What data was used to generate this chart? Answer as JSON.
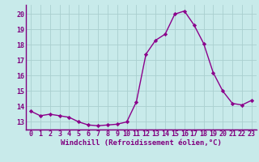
{
  "x": [
    0,
    1,
    2,
    3,
    4,
    5,
    6,
    7,
    8,
    9,
    10,
    11,
    12,
    13,
    14,
    15,
    16,
    17,
    18,
    19,
    20,
    21,
    22,
    23
  ],
  "y": [
    13.7,
    13.4,
    13.5,
    13.4,
    13.3,
    13.0,
    12.8,
    12.75,
    12.8,
    12.85,
    13.0,
    14.3,
    17.4,
    18.3,
    18.7,
    20.0,
    20.2,
    19.3,
    18.1,
    16.2,
    15.0,
    14.2,
    14.1,
    14.4
  ],
  "line_color": "#8b008b",
  "marker": "D",
  "marker_size": 2.2,
  "bg_color": "#c8eaea",
  "grid_color": "#aacfcf",
  "axis_color": "#800080",
  "xlabel": "Windchill (Refroidissement éolien,°C)",
  "ylim": [
    12.5,
    20.6
  ],
  "xlim": [
    -0.5,
    23.5
  ],
  "yticks": [
    13,
    14,
    15,
    16,
    17,
    18,
    19,
    20
  ],
  "xticks": [
    0,
    1,
    2,
    3,
    4,
    5,
    6,
    7,
    8,
    9,
    10,
    11,
    12,
    13,
    14,
    15,
    16,
    17,
    18,
    19,
    20,
    21,
    22,
    23
  ],
  "font_size_axis": 6.5,
  "font_size_tick": 6.0,
  "line_width": 1.0
}
